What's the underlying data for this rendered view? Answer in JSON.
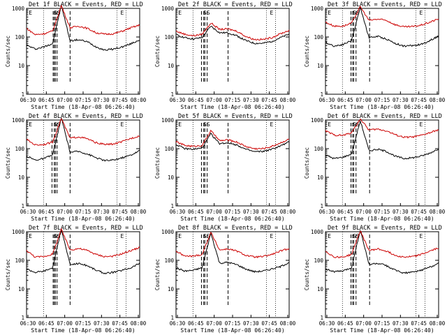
{
  "figure": {
    "background": "#ffffff",
    "colors": {
      "events": "#000000",
      "lld": "#cc0000",
      "axes": "#000000"
    }
  },
  "chart_data": [
    {
      "type": "line",
      "title": "Det 1f BLACK = Events, RED = LLD",
      "xlabel": "Start Time (18-Apr-08 06:26:40)",
      "ylabel": "Counts/sec",
      "ylog": true,
      "ylim": [
        1,
        1000
      ],
      "xticks": [
        "06:30",
        "06:45",
        "07:00",
        "07:15",
        "07:30",
        "07:45",
        "08:00"
      ],
      "yticks": [
        "1",
        "10",
        "100",
        "1000"
      ],
      "markers": [
        "E",
        "SS",
        "E"
      ],
      "series": [
        {
          "name": "Events",
          "color": "#000000",
          "values": [
            52,
            38,
            45,
            60,
            1300,
            74,
            80,
            68,
            45,
            35,
            38,
            45,
            58,
            80
          ]
        },
        {
          "name": "LLD",
          "color": "#cc0000",
          "values": [
            200,
            120,
            130,
            160,
            1250,
            210,
            240,
            200,
            140,
            125,
            130,
            160,
            210,
            260
          ]
        }
      ]
    },
    {
      "type": "line",
      "title": "Det 2f BLACK = Events, RED = LLD",
      "xlabel": "Start Time (18-Apr-08 06:26:40)",
      "ylabel": "Counts/sec",
      "ylog": true,
      "ylim": [
        1,
        1000
      ],
      "xticks": [
        "06:30",
        "06:45",
        "07:00",
        "07:15",
        "07:30",
        "07:45",
        "08:00"
      ],
      "yticks": [
        "1",
        "10",
        "100",
        "1000"
      ],
      "markers": [
        "E",
        "SS",
        "E"
      ],
      "series": [
        {
          "name": "Events",
          "color": "#000000",
          "values": [
            120,
            95,
            85,
            95,
            240,
            140,
            140,
            110,
            75,
            60,
            60,
            70,
            95,
            125
          ]
        },
        {
          "name": "LLD",
          "color": "#cc0000",
          "values": [
            160,
            125,
            110,
            125,
            310,
            185,
            190,
            160,
            105,
            82,
            82,
            95,
            130,
            170
          ]
        }
      ]
    },
    {
      "type": "line",
      "title": "Det 3f BLACK = Events, RED = LLD",
      "xlabel": "Start Time (18-Apr-08 06:26:40)",
      "ylabel": "Counts/sec",
      "ylog": true,
      "ylim": [
        1,
        1000
      ],
      "xticks": [
        "06:30",
        "06:45",
        "07:00",
        "07:15",
        "07:30",
        "07:45",
        "08:00"
      ],
      "yticks": [
        "1",
        "10",
        "100",
        "1000"
      ],
      "markers": [
        "E",
        "SS",
        "E"
      ],
      "series": [
        {
          "name": "Events",
          "color": "#000000",
          "values": [
            65,
            48,
            55,
            75,
            1100,
            95,
            105,
            85,
            60,
            48,
            50,
            55,
            75,
            110
          ]
        },
        {
          "name": "LLD",
          "color": "#cc0000",
          "values": [
            330,
            240,
            240,
            300,
            1150,
            380,
            420,
            380,
            270,
            225,
            230,
            260,
            330,
            430
          ]
        }
      ]
    },
    {
      "type": "line",
      "title": "Det 4f BLACK = Events, RED = LLD",
      "xlabel": "Start Time (18-Apr-08 06:26:40)",
      "ylabel": "Counts/sec",
      "ylog": true,
      "ylim": [
        1,
        1000
      ],
      "xticks": [
        "06:30",
        "06:45",
        "07:00",
        "07:15",
        "07:30",
        "07:45",
        "08:00"
      ],
      "yticks": [
        "1",
        "10",
        "100",
        "1000"
      ],
      "markers": [
        "E",
        "SS",
        "E"
      ],
      "series": [
        {
          "name": "Events",
          "color": "#000000",
          "values": [
            55,
            40,
            45,
            60,
            1200,
            75,
            80,
            65,
            48,
            38,
            40,
            48,
            60,
            85
          ]
        },
        {
          "name": "LLD",
          "color": "#cc0000",
          "values": [
            210,
            135,
            140,
            170,
            1150,
            230,
            260,
            220,
            160,
            140,
            145,
            175,
            230,
            280
          ]
        }
      ]
    },
    {
      "type": "line",
      "title": "Det 5f BLACK = Events, RED = LLD",
      "xlabel": "Start Time (18-Apr-08 06:26:40)",
      "ylabel": "Counts/sec",
      "ylog": true,
      "ylim": [
        1,
        1000
      ],
      "xticks": [
        "06:30",
        "06:45",
        "07:00",
        "07:15",
        "07:30",
        "07:45",
        "08:00"
      ],
      "yticks": [
        "1",
        "10",
        "100",
        "1000"
      ],
      "markers": [
        "E",
        "SS",
        "E"
      ],
      "series": [
        {
          "name": "Events",
          "color": "#000000",
          "values": [
            140,
            100,
            95,
            105,
            330,
            150,
            160,
            135,
            95,
            78,
            80,
            95,
            125,
            170
          ]
        },
        {
          "name": "LLD",
          "color": "#cc0000",
          "values": [
            175,
            130,
            120,
            130,
            420,
            190,
            200,
            170,
            120,
            100,
            100,
            120,
            160,
            215
          ]
        }
      ]
    },
    {
      "type": "line",
      "title": "Det 6f BLACK = Events, RED = LLD",
      "xlabel": "Start Time (18-Apr-08 06:26:40)",
      "ylabel": "Counts/sec",
      "ylog": true,
      "ylim": [
        1,
        1000
      ],
      "xticks": [
        "06:30",
        "06:45",
        "07:00",
        "07:15",
        "07:30",
        "07:45",
        "08:00"
      ],
      "yticks": [
        "1",
        "10",
        "100",
        "1000"
      ],
      "markers": [
        "E",
        "SS",
        "E"
      ],
      "series": [
        {
          "name": "Events",
          "color": "#000000",
          "values": [
            60,
            45,
            50,
            65,
            950,
            85,
            95,
            80,
            55,
            45,
            48,
            55,
            70,
            100
          ]
        },
        {
          "name": "LLD",
          "color": "#cc0000",
          "values": [
            420,
            300,
            290,
            360,
            1100,
            450,
            480,
            420,
            310,
            250,
            255,
            290,
            360,
            460
          ]
        }
      ]
    },
    {
      "type": "line",
      "title": "Det 7f BLACK = Events, RED = LLD",
      "xlabel": "Start Time (18-Apr-08 06:26:40)",
      "ylabel": "Counts/sec",
      "ylog": true,
      "ylim": [
        1,
        1000
      ],
      "xticks": [
        "06:30",
        "06:45",
        "07:00",
        "07:15",
        "07:30",
        "07:45",
        "08:00"
      ],
      "yticks": [
        "1",
        "10",
        "100",
        "1000"
      ],
      "markers": [
        "E",
        "SS",
        "E"
      ],
      "series": [
        {
          "name": "Events",
          "color": "#000000",
          "values": [
            50,
            38,
            42,
            55,
            1250,
            70,
            78,
            65,
            45,
            35,
            38,
            45,
            55,
            80
          ]
        },
        {
          "name": "LLD",
          "color": "#cc0000",
          "values": [
            220,
            130,
            135,
            165,
            1200,
            230,
            260,
            220,
            160,
            135,
            140,
            170,
            220,
            280
          ]
        }
      ]
    },
    {
      "type": "line",
      "title": "Det 8f BLACK = Events, RED = LLD",
      "xlabel": "Start Time (18-Apr-08 06:26:40)",
      "ylabel": "Counts/sec",
      "ylog": true,
      "ylim": [
        1,
        1000
      ],
      "xticks": [
        "06:30",
        "06:45",
        "07:00",
        "07:15",
        "07:30",
        "07:45",
        "08:00"
      ],
      "yticks": [
        "1",
        "10",
        "100",
        "1000"
      ],
      "markers": [
        "E",
        "SS",
        "E"
      ],
      "series": [
        {
          "name": "Events",
          "color": "#000000",
          "values": [
            55,
            42,
            45,
            55,
            900,
            80,
            85,
            70,
            50,
            40,
            42,
            50,
            60,
            85
          ]
        },
        {
          "name": "LLD",
          "color": "#cc0000",
          "values": [
            210,
            140,
            140,
            160,
            950,
            230,
            250,
            210,
            150,
            130,
            135,
            160,
            210,
            260
          ]
        }
      ]
    },
    {
      "type": "line",
      "title": "Det 9f BLACK = Events, RED = LLD",
      "xlabel": "Start Time (18-Apr-08 06:26:40)",
      "ylabel": "Counts/sec",
      "ylog": true,
      "ylim": [
        1,
        1000
      ],
      "xticks": [
        "06:30",
        "06:45",
        "07:00",
        "07:15",
        "07:30",
        "07:45",
        "08:00"
      ],
      "yticks": [
        "1",
        "10",
        "100",
        "1000"
      ],
      "markers": [
        "E",
        "SS",
        "E"
      ],
      "series": [
        {
          "name": "Events",
          "color": "#000000",
          "values": [
            50,
            40,
            42,
            55,
            1150,
            72,
            78,
            65,
            45,
            36,
            38,
            45,
            58,
            80
          ]
        },
        {
          "name": "LLD",
          "color": "#cc0000",
          "values": [
            210,
            130,
            130,
            160,
            1100,
            220,
            250,
            210,
            150,
            130,
            135,
            160,
            210,
            270
          ]
        }
      ]
    }
  ]
}
